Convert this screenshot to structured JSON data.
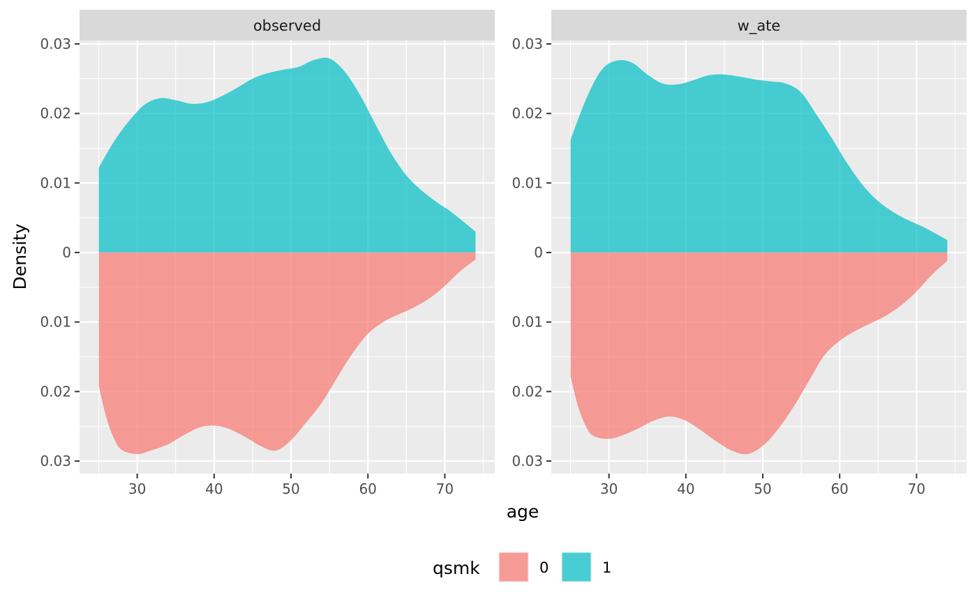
{
  "chart_data": {
    "type": "area",
    "subtype": "mirrored-density",
    "xlabel": "age",
    "ylabel": "Density",
    "x_ticks": [
      30,
      40,
      50,
      60,
      70
    ],
    "y_ticks": [
      {
        "value": 0.03,
        "label": "0.03"
      },
      {
        "value": 0.02,
        "label": "0.02"
      },
      {
        "value": 0.01,
        "label": "0.01"
      },
      {
        "value": 0,
        "label": "0"
      },
      {
        "value": -0.01,
        "label": "0.01"
      },
      {
        "value": -0.02,
        "label": "0.02"
      },
      {
        "value": -0.03,
        "label": "0.03"
      }
    ],
    "xlim": [
      22.5,
      76.5
    ],
    "ylim": [
      -0.0318,
      0.0305
    ],
    "grid": true,
    "legend": {
      "title": "qsmk",
      "position": "bottom",
      "items": [
        {
          "label": "0",
          "color": "#F8766D"
        },
        {
          "label": "1",
          "color": "#00BFC4"
        }
      ]
    },
    "panels": [
      {
        "strip": "observed",
        "series": [
          {
            "group": "1",
            "direction": "up",
            "x": [
              25,
              27,
              29,
              31,
              33,
              35,
              37,
              39,
              41,
              43,
              45,
              47,
              49,
              51,
              53,
              55,
              57,
              59,
              61,
              63,
              65,
              67,
              69,
              71,
              74
            ],
            "values": [
              0.0122,
              0.016,
              0.019,
              0.0213,
              0.0222,
              0.0219,
              0.0214,
              0.0216,
              0.0225,
              0.0237,
              0.025,
              0.0258,
              0.0263,
              0.0267,
              0.0277,
              0.0279,
              0.026,
              0.0226,
              0.0184,
              0.0143,
              0.0111,
              0.0089,
              0.0072,
              0.0057,
              0.003
            ]
          },
          {
            "group": "0",
            "direction": "down",
            "x": [
              25,
              26,
              27,
              28,
              30,
              32,
              34,
              36,
              38,
              40,
              42,
              44,
              46,
              48,
              50,
              52,
              54,
              56,
              58,
              60,
              62,
              64,
              66,
              68,
              70,
              72,
              74
            ],
            "values": [
              0.0192,
              0.0238,
              0.0268,
              0.0284,
              0.029,
              0.0284,
              0.0276,
              0.0263,
              0.0252,
              0.0249,
              0.0254,
              0.0265,
              0.0278,
              0.0285,
              0.027,
              0.0244,
              0.0216,
              0.018,
              0.0145,
              0.0117,
              0.01,
              0.0089,
              0.0079,
              0.0066,
              0.0048,
              0.0027,
              0.001
            ]
          }
        ]
      },
      {
        "strip": "w_ate",
        "series": [
          {
            "group": "1",
            "direction": "up",
            "x": [
              25,
              27,
              29,
              31,
              33,
              35,
              37,
              39,
              41,
              43,
              45,
              47,
              49,
              51,
              53,
              55,
              57,
              59,
              61,
              63,
              65,
              67,
              69,
              71,
              74
            ],
            "values": [
              0.0162,
              0.022,
              0.0262,
              0.0276,
              0.0273,
              0.0256,
              0.0243,
              0.0242,
              0.0248,
              0.0255,
              0.0256,
              0.0253,
              0.0249,
              0.0246,
              0.0243,
              0.023,
              0.0198,
              0.0164,
              0.0128,
              0.0097,
              0.0074,
              0.0058,
              0.0046,
              0.0036,
              0.0018
            ]
          },
          {
            "group": "0",
            "direction": "down",
            "x": [
              25,
              26,
              27,
              28,
              30,
              32,
              34,
              36,
              38,
              40,
              42,
              44,
              46,
              48,
              50,
              52,
              54,
              56,
              58,
              60,
              62,
              64,
              66,
              68,
              70,
              72,
              74
            ],
            "values": [
              0.0178,
              0.0222,
              0.025,
              0.0264,
              0.0268,
              0.0262,
              0.0252,
              0.0241,
              0.0236,
              0.0242,
              0.0256,
              0.0272,
              0.0285,
              0.029,
              0.0278,
              0.0254,
              0.0222,
              0.0185,
              0.0148,
              0.0127,
              0.0113,
              0.0102,
              0.0091,
              0.0076,
              0.0056,
              0.0032,
              0.0012
            ]
          }
        ]
      }
    ]
  }
}
